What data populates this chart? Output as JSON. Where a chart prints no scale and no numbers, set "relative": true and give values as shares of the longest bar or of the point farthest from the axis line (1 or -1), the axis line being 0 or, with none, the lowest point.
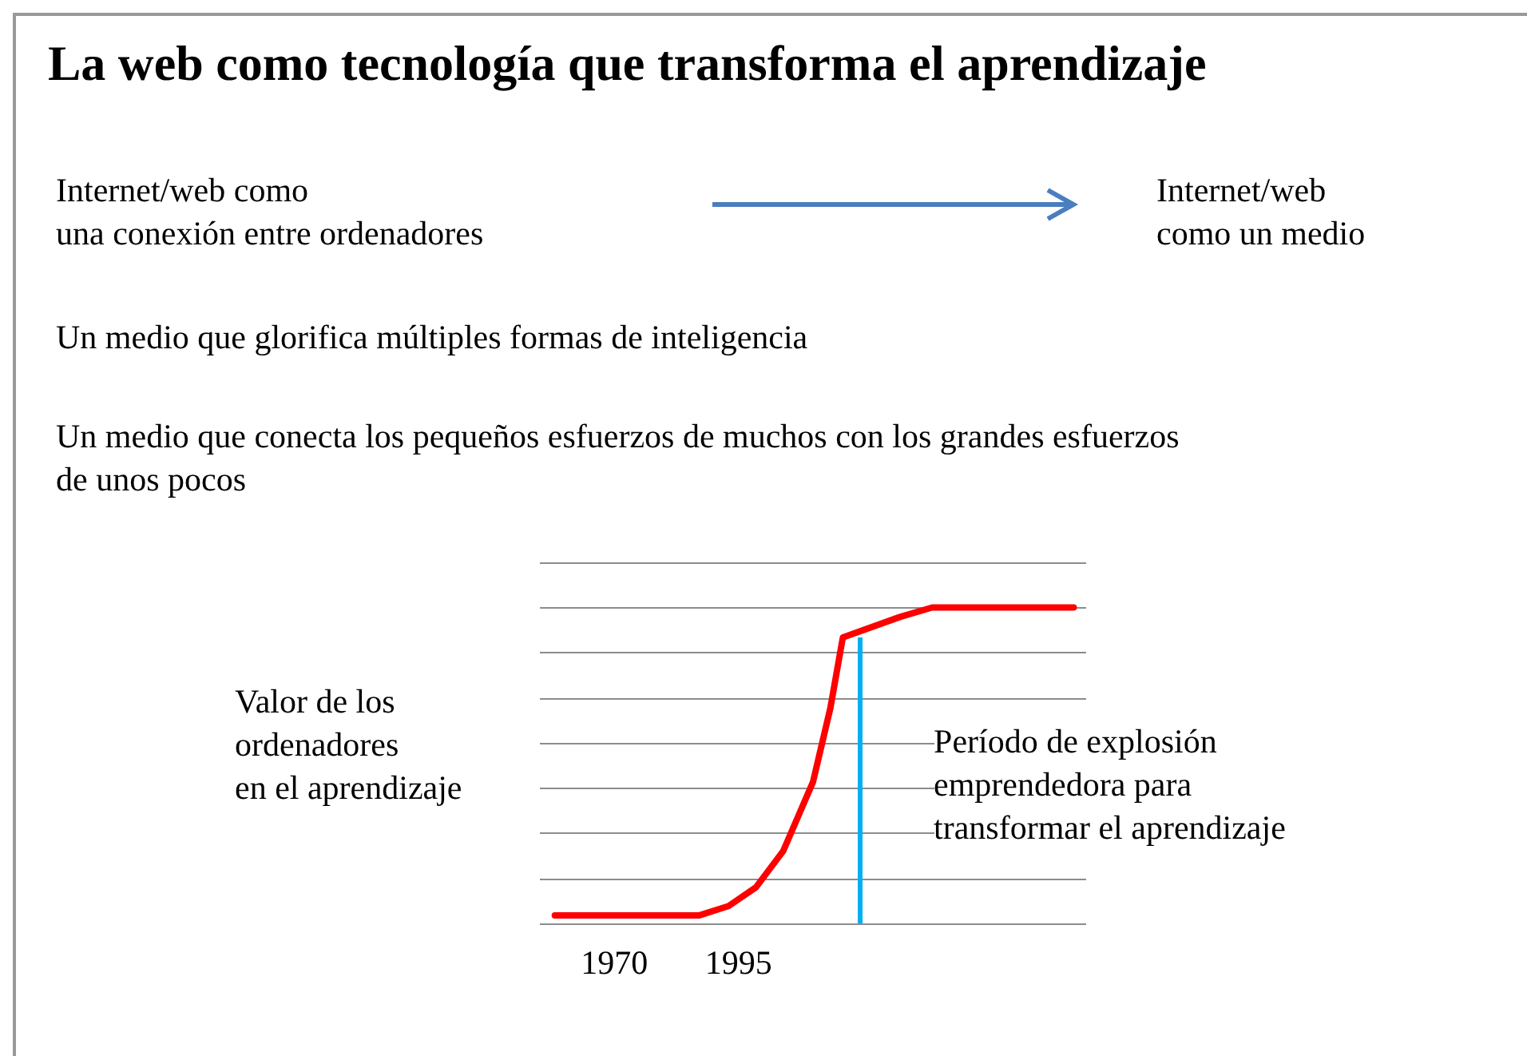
{
  "chart_data": {
    "type": "line",
    "title": "La web como tecnología que transforma el aprendizaje",
    "annotations": [
      "Internet/web como\nuna conexión entre ordenadores",
      "Internet/web\ncomo un medio",
      "Un medio que glorifica múltiples formas de inteligencia",
      "Un medio que conecta los pequeños esfuerzos de muchos con los grandes esfuerzos\nde unos pocos"
    ],
    "ylabel": "Valor de los\nordenadores\nen el aprendizaje",
    "relative": true,
    "x": [
      1958,
      1987,
      1993,
      1998.5,
      2004,
      2010,
      2013.5,
      2016,
      2027.5,
      2034,
      2062.5
    ],
    "series": [
      {
        "color": "#ff0000",
        "values": [
          0.025,
          0.025,
          0.055,
          0.114,
          0.229,
          0.448,
          0.682,
          0.905,
          0.97,
          1,
          1
        ]
      }
    ],
    "xlim": [
      1955,
      2065
    ],
    "xticks": [
      1970,
      1995
    ],
    "ref_lines": [
      {
        "axis": "x",
        "value": 2019.5,
        "label": "Período de explosión\nemprendedora para\ntransformar el aprendizaje",
        "color": "#00b0f0"
      }
    ],
    "grid": "y",
    "marker": "none",
    "line_style": "solid"
  }
}
